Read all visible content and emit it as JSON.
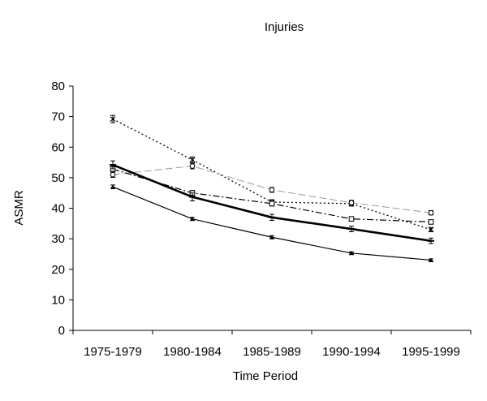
{
  "chart_data": {
    "type": "line",
    "title": "Injuries",
    "xlabel": "Time Period",
    "ylabel": "ASMR",
    "categories": [
      "1975-1979",
      "1980-1984",
      "1985-1989",
      "1990-1994",
      "1995-1999"
    ],
    "ylim": [
      0,
      80
    ],
    "yticks": [
      0,
      10,
      20,
      30,
      40,
      50,
      60,
      70,
      80
    ],
    "grid": false,
    "legend": "none",
    "series": [
      {
        "values": [
          69.2,
          55.8,
          42.0,
          41.5,
          33.0
        ],
        "error": [
          1.2,
          1.0,
          0.8,
          0.8,
          0.7
        ],
        "style": "dotted",
        "marker": "x",
        "color": "#000000"
      },
      {
        "values": [
          51.0,
          53.8,
          46.0,
          41.8,
          38.5
        ],
        "error": [
          0.9,
          0.9,
          0.8,
          0.8,
          0.7
        ],
        "style": "long-dash",
        "marker": "circle",
        "color": "#999999"
      },
      {
        "values": [
          52.8,
          45.0,
          41.5,
          36.5,
          35.5
        ],
        "error": [
          0.9,
          0.8,
          0.8,
          0.7,
          0.7
        ],
        "style": "dash-dot",
        "marker": "square",
        "color": "#000000"
      },
      {
        "values": [
          54.2,
          43.7,
          37.0,
          33.2,
          29.3
        ],
        "error": [
          1.3,
          1.3,
          1.0,
          0.9,
          0.9
        ],
        "style": "thick-solid",
        "marker": "dash",
        "color": "#000000"
      },
      {
        "values": [
          47.0,
          36.5,
          30.5,
          25.3,
          23.0
        ],
        "error": [
          0.6,
          0.5,
          0.5,
          0.4,
          0.4
        ],
        "style": "solid",
        "marker": "triangle",
        "color": "#000000"
      }
    ]
  }
}
